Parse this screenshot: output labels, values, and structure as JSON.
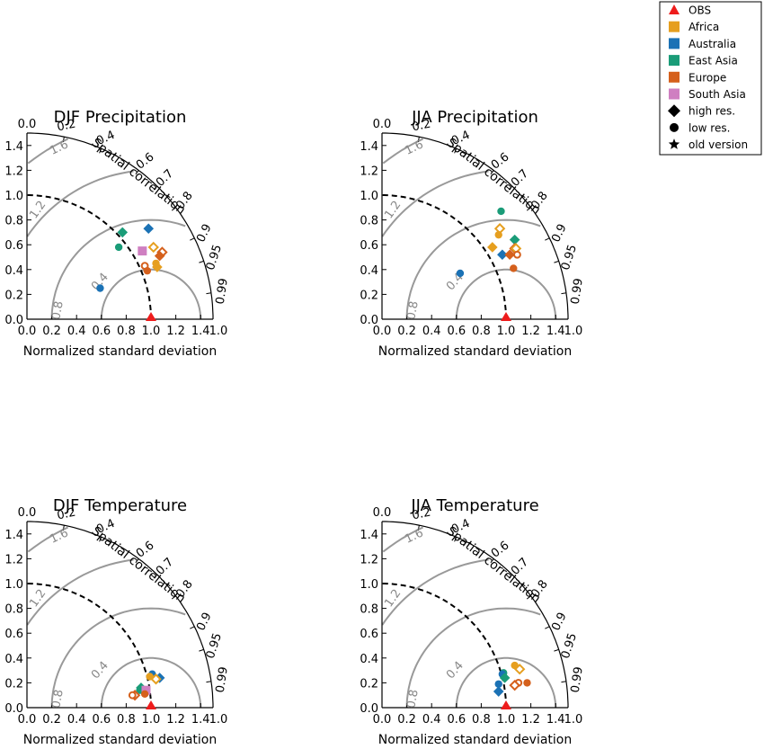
{
  "figure": {
    "legend": {
      "placement": "top-right",
      "items": [
        {
          "label": "OBS",
          "marker": "triangle",
          "color": "#ee1c1c"
        },
        {
          "label": "Africa",
          "marker": "square",
          "color": "#e69f1f"
        },
        {
          "label": "Australia",
          "marker": "square",
          "color": "#1b72b5"
        },
        {
          "label": "East Asia",
          "marker": "square",
          "color": "#1a9c78"
        },
        {
          "label": "Europe",
          "marker": "square",
          "color": "#d5601c"
        },
        {
          "label": "South Asia",
          "marker": "square",
          "color": "#cf7fc1"
        },
        {
          "label": "high res.",
          "marker": "diamond",
          "color": "#000000"
        },
        {
          "label": "low res.",
          "marker": "circle",
          "color": "#000000"
        },
        {
          "label": "old version",
          "marker": "star",
          "color": "#000000"
        }
      ]
    },
    "axis_text": {
      "xlabel": "Normalized standard deviation",
      "corr_label": "Spatial correlation",
      "x_ticks": [
        "0.0",
        "0.2",
        "0.4",
        "0.6",
        "0.8",
        "1.0",
        "1.2",
        "1.4"
      ],
      "x_end": "1.0",
      "y_ticks": [
        "0.0",
        "0.2",
        "0.4",
        "0.6",
        "0.8",
        "1.0",
        "1.2",
        "1.4"
      ],
      "y_top": "0.0",
      "corr_ticks": [
        "0.2",
        "0.4",
        "0.6",
        "0.7",
        "0.8",
        "0.9",
        "0.95",
        "0.99"
      ],
      "rms_labels": [
        "0.4",
        "0.8",
        "1.2",
        "1.6"
      ]
    }
  },
  "chart_data": [
    {
      "type": "scatter",
      "subtype": "taylor-diagram",
      "title": "DJF Precipitation",
      "xlabel": "Normalized standard deviation",
      "corr_label": "Spatial correlation",
      "xlim": [
        0,
        1.5
      ],
      "ylim": [
        0,
        1.5
      ],
      "std_ticks": [
        0,
        0.2,
        0.4,
        0.6,
        0.8,
        1.0,
        1.2,
        1.4
      ],
      "corr_ticks": [
        0.2,
        0.4,
        0.6,
        0.7,
        0.8,
        0.9,
        0.95,
        0.99
      ],
      "rms_contours": [
        0.4,
        0.8,
        1.2,
        1.6
      ],
      "reference": {
        "label": "OBS",
        "x": 1.0,
        "y": 0.0
      },
      "points": [
        {
          "region": "Australia",
          "marker": "circle",
          "filled": true,
          "x": 0.59,
          "y": 0.25
        },
        {
          "region": "East Asia",
          "marker": "circle",
          "filled": true,
          "x": 0.74,
          "y": 0.58
        },
        {
          "region": "East Asia",
          "marker": "diamond",
          "filled": true,
          "x": 0.77,
          "y": 0.7
        },
        {
          "region": "Australia",
          "marker": "diamond",
          "filled": true,
          "x": 0.98,
          "y": 0.73
        },
        {
          "region": "South Asia",
          "marker": "square",
          "filled": true,
          "x": 0.93,
          "y": 0.55
        },
        {
          "region": "Africa",
          "marker": "diamond",
          "filled": false,
          "x": 1.02,
          "y": 0.58
        },
        {
          "region": "Europe",
          "marker": "diamond",
          "filled": false,
          "x": 1.09,
          "y": 0.54
        },
        {
          "region": "Europe",
          "marker": "diamond",
          "filled": true,
          "x": 1.07,
          "y": 0.51
        },
        {
          "region": "Africa",
          "marker": "circle",
          "filled": true,
          "x": 1.04,
          "y": 0.45
        },
        {
          "region": "Africa",
          "marker": "diamond",
          "filled": true,
          "x": 1.05,
          "y": 0.42
        },
        {
          "region": "Europe",
          "marker": "circle",
          "filled": false,
          "x": 0.95,
          "y": 0.43
        },
        {
          "region": "Europe",
          "marker": "circle",
          "filled": true,
          "x": 0.97,
          "y": 0.39
        }
      ]
    },
    {
      "type": "scatter",
      "subtype": "taylor-diagram",
      "title": "JJA Precipitation",
      "xlabel": "Normalized standard deviation",
      "corr_label": "Spatial correlation",
      "xlim": [
        0,
        1.5
      ],
      "ylim": [
        0,
        1.5
      ],
      "std_ticks": [
        0,
        0.2,
        0.4,
        0.6,
        0.8,
        1.0,
        1.2,
        1.4
      ],
      "corr_ticks": [
        0.2,
        0.4,
        0.6,
        0.7,
        0.8,
        0.9,
        0.95,
        0.99
      ],
      "rms_contours": [
        0.4,
        0.8,
        1.2,
        1.6
      ],
      "reference": {
        "label": "OBS",
        "x": 1.0,
        "y": 0.0
      },
      "points": [
        {
          "region": "Australia",
          "marker": "circle",
          "filled": true,
          "x": 0.63,
          "y": 0.37
        },
        {
          "region": "Africa",
          "marker": "diamond",
          "filled": true,
          "x": 0.89,
          "y": 0.58
        },
        {
          "region": "East Asia",
          "marker": "circle",
          "filled": true,
          "x": 0.96,
          "y": 0.87
        },
        {
          "region": "Africa",
          "marker": "diamond",
          "filled": false,
          "x": 0.95,
          "y": 0.73
        },
        {
          "region": "Africa",
          "marker": "circle",
          "filled": true,
          "x": 0.94,
          "y": 0.68
        },
        {
          "region": "East Asia",
          "marker": "diamond",
          "filled": true,
          "x": 1.07,
          "y": 0.64
        },
        {
          "region": "Europe",
          "marker": "diamond",
          "filled": false,
          "x": 1.07,
          "y": 0.57
        },
        {
          "region": "Africa",
          "marker": "diamond",
          "filled": false,
          "x": 1.08,
          "y": 0.57
        },
        {
          "region": "Europe",
          "marker": "circle",
          "filled": false,
          "x": 1.09,
          "y": 0.52
        },
        {
          "region": "Australia",
          "marker": "diamond",
          "filled": true,
          "x": 0.97,
          "y": 0.52
        },
        {
          "region": "Europe",
          "marker": "diamond",
          "filled": true,
          "x": 1.03,
          "y": 0.52
        },
        {
          "region": "Europe",
          "marker": "circle",
          "filled": true,
          "x": 1.06,
          "y": 0.41
        }
      ]
    },
    {
      "type": "scatter",
      "subtype": "taylor-diagram",
      "title": "DJF Temperature",
      "xlabel": "Normalized standard deviation",
      "corr_label": "Spatial correlation",
      "xlim": [
        0,
        1.5
      ],
      "ylim": [
        0,
        1.5
      ],
      "std_ticks": [
        0,
        0.2,
        0.4,
        0.6,
        0.8,
        1.0,
        1.2,
        1.4
      ],
      "corr_ticks": [
        0.2,
        0.4,
        0.6,
        0.7,
        0.8,
        0.9,
        0.95,
        0.99
      ],
      "rms_contours": [
        0.4,
        0.8,
        1.2,
        1.6
      ],
      "reference": {
        "label": "OBS",
        "x": 1.0,
        "y": 0.0
      },
      "points": [
        {
          "region": "Australia",
          "marker": "circle",
          "filled": true,
          "x": 1.01,
          "y": 0.27
        },
        {
          "region": "Africa",
          "marker": "circle",
          "filled": true,
          "x": 0.99,
          "y": 0.25
        },
        {
          "region": "Australia",
          "marker": "diamond",
          "filled": true,
          "x": 1.07,
          "y": 0.24
        },
        {
          "region": "Africa",
          "marker": "diamond",
          "filled": false,
          "x": 1.04,
          "y": 0.23
        },
        {
          "region": "East Asia",
          "marker": "diamond",
          "filled": true,
          "x": 0.92,
          "y": 0.16
        },
        {
          "region": "East Asia",
          "marker": "circle",
          "filled": true,
          "x": 0.91,
          "y": 0.14
        },
        {
          "region": "South Asia",
          "marker": "square",
          "filled": true,
          "x": 0.96,
          "y": 0.14
        },
        {
          "region": "Europe",
          "marker": "circle",
          "filled": true,
          "x": 0.95,
          "y": 0.11
        },
        {
          "region": "Europe",
          "marker": "diamond",
          "filled": false,
          "x": 0.87,
          "y": 0.1
        },
        {
          "region": "Europe",
          "marker": "circle",
          "filled": false,
          "x": 0.85,
          "y": 0.1
        }
      ]
    },
    {
      "type": "scatter",
      "subtype": "taylor-diagram",
      "title": "JJA Temperature",
      "xlabel": "Normalized standard deviation",
      "corr_label": "Spatial correlation",
      "xlim": [
        0,
        1.5
      ],
      "ylim": [
        0,
        1.5
      ],
      "std_ticks": [
        0,
        0.2,
        0.4,
        0.6,
        0.8,
        1.0,
        1.2,
        1.4
      ],
      "corr_ticks": [
        0.2,
        0.4,
        0.6,
        0.7,
        0.8,
        0.9,
        0.95,
        0.99
      ],
      "rms_contours": [
        0.4,
        0.8,
        1.2,
        1.6
      ],
      "reference": {
        "label": "OBS",
        "x": 1.0,
        "y": 0.0
      },
      "points": [
        {
          "region": "Africa",
          "marker": "circle",
          "filled": true,
          "x": 1.07,
          "y": 0.34
        },
        {
          "region": "Africa",
          "marker": "diamond",
          "filled": false,
          "x": 1.11,
          "y": 0.31
        },
        {
          "region": "East Asia",
          "marker": "circle",
          "filled": true,
          "x": 0.98,
          "y": 0.28
        },
        {
          "region": "Australia",
          "marker": "circle",
          "filled": true,
          "x": 0.97,
          "y": 0.27
        },
        {
          "region": "East Asia",
          "marker": "diamond",
          "filled": true,
          "x": 0.99,
          "y": 0.24
        },
        {
          "region": "Europe",
          "marker": "circle",
          "filled": true,
          "x": 1.17,
          "y": 0.2
        },
        {
          "region": "Europe",
          "marker": "circle",
          "filled": false,
          "x": 1.1,
          "y": 0.2
        },
        {
          "region": "Europe",
          "marker": "diamond",
          "filled": false,
          "x": 1.07,
          "y": 0.18
        },
        {
          "region": "Australia",
          "marker": "circle",
          "filled": true,
          "x": 0.94,
          "y": 0.19
        },
        {
          "region": "Australia",
          "marker": "diamond",
          "filled": true,
          "x": 0.94,
          "y": 0.13
        }
      ]
    }
  ]
}
